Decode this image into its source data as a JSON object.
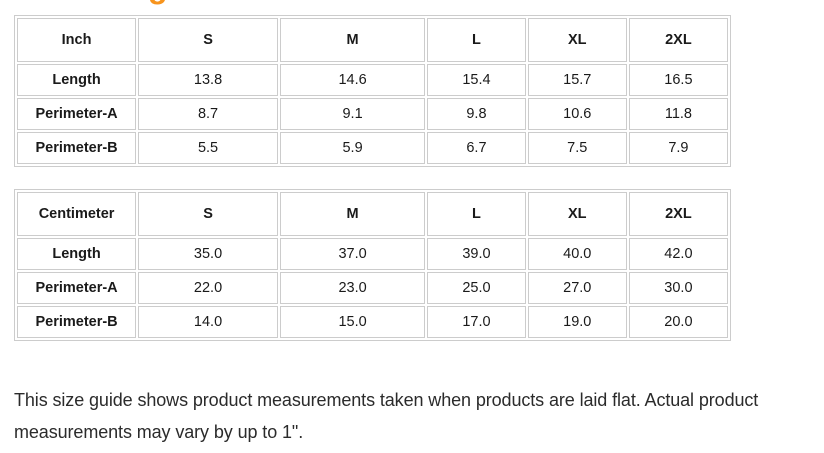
{
  "heading": {
    "visible_fragment": "g"
  },
  "colors": {
    "heading_accent": "#f7941d",
    "table_border": "#cccccc",
    "cell_text": "#1a1a1a",
    "note_text": "#2b2b2b"
  },
  "tables": [
    {
      "unit_label": "Inch",
      "columns": [
        "S",
        "M",
        "L",
        "XL",
        "2XL"
      ],
      "rows": [
        {
          "label": "Length",
          "values": [
            "13.8",
            "14.6",
            "15.4",
            "15.7",
            "16.5"
          ]
        },
        {
          "label": "Perimeter-A",
          "values": [
            "8.7",
            "9.1",
            "9.8",
            "10.6",
            "11.8"
          ]
        },
        {
          "label": "Perimeter-B",
          "values": [
            "5.5",
            "5.9",
            "6.7",
            "7.5",
            "7.9"
          ]
        }
      ]
    },
    {
      "unit_label": "Centimeter",
      "columns": [
        "S",
        "M",
        "L",
        "XL",
        "2XL"
      ],
      "rows": [
        {
          "label": "Length",
          "values": [
            "35.0",
            "37.0",
            "39.0",
            "40.0",
            "42.0"
          ]
        },
        {
          "label": "Perimeter-A",
          "values": [
            "22.0",
            "23.0",
            "25.0",
            "27.0",
            "30.0"
          ]
        },
        {
          "label": "Perimeter-B",
          "values": [
            "14.0",
            "15.0",
            "17.0",
            "19.0",
            "20.0"
          ]
        }
      ]
    }
  ],
  "footer": {
    "note_lines": [
      "This size guide shows product measurements taken when products are laid flat. Actual product",
      "measurements may vary by up to 1\"."
    ]
  }
}
